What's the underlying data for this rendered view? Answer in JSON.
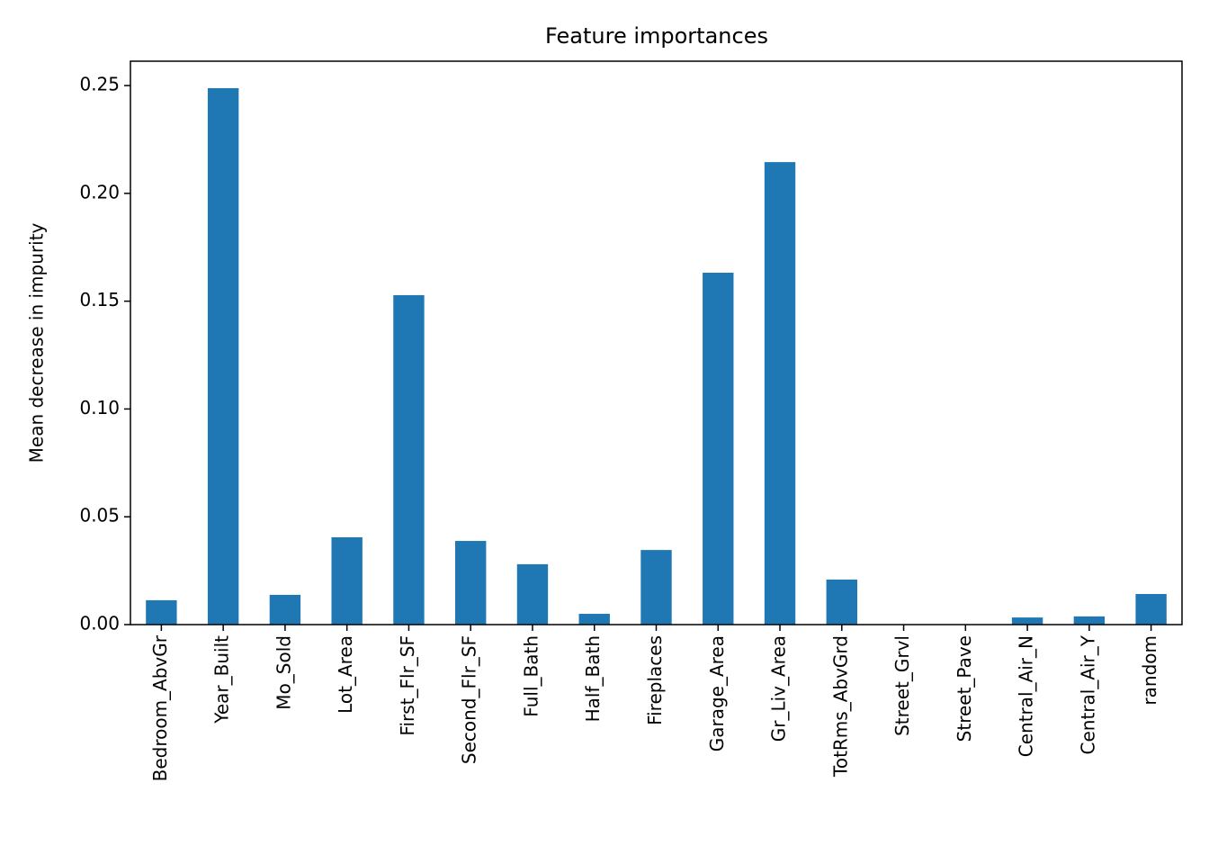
{
  "chart_data": {
    "type": "bar",
    "title": "Feature importances",
    "y_label": "Mean decrease in impurity",
    "categories": [
      "Bedroom_AbvGr",
      "Year_Built",
      "Mo_Sold",
      "Lot_Area",
      "First_Flr_SF",
      "Second_Flr_SF",
      "Full_Bath",
      "Half_Bath",
      "Fireplaces",
      "Garage_Area",
      "Gr_Liv_Area",
      "TotRms_AbvGrd",
      "Street_Grvl",
      "Street_Pave",
      "Central_Air_N",
      "Central_Air_Y",
      "random"
    ],
    "values": [
      0.0113,
      0.2488,
      0.0138,
      0.0405,
      0.1528,
      0.0388,
      0.028,
      0.005,
      0.0346,
      0.1632,
      0.2145,
      0.0209,
      0.0,
      0.0,
      0.0033,
      0.0038,
      0.0142
    ],
    "color": "#1f77b4",
    "ylim": [
      0,
      0.2613
    ],
    "yticks": [
      {
        "value": 0,
        "label": "0.00"
      },
      {
        "value": 0.05,
        "label": "0.05"
      },
      {
        "value": 0.1,
        "label": "0.10"
      },
      {
        "value": 0.15,
        "label": "0.15"
      },
      {
        "value": 0.2,
        "label": "0.20"
      },
      {
        "value": 0.25,
        "label": "0.25"
      }
    ],
    "grid": false
  }
}
